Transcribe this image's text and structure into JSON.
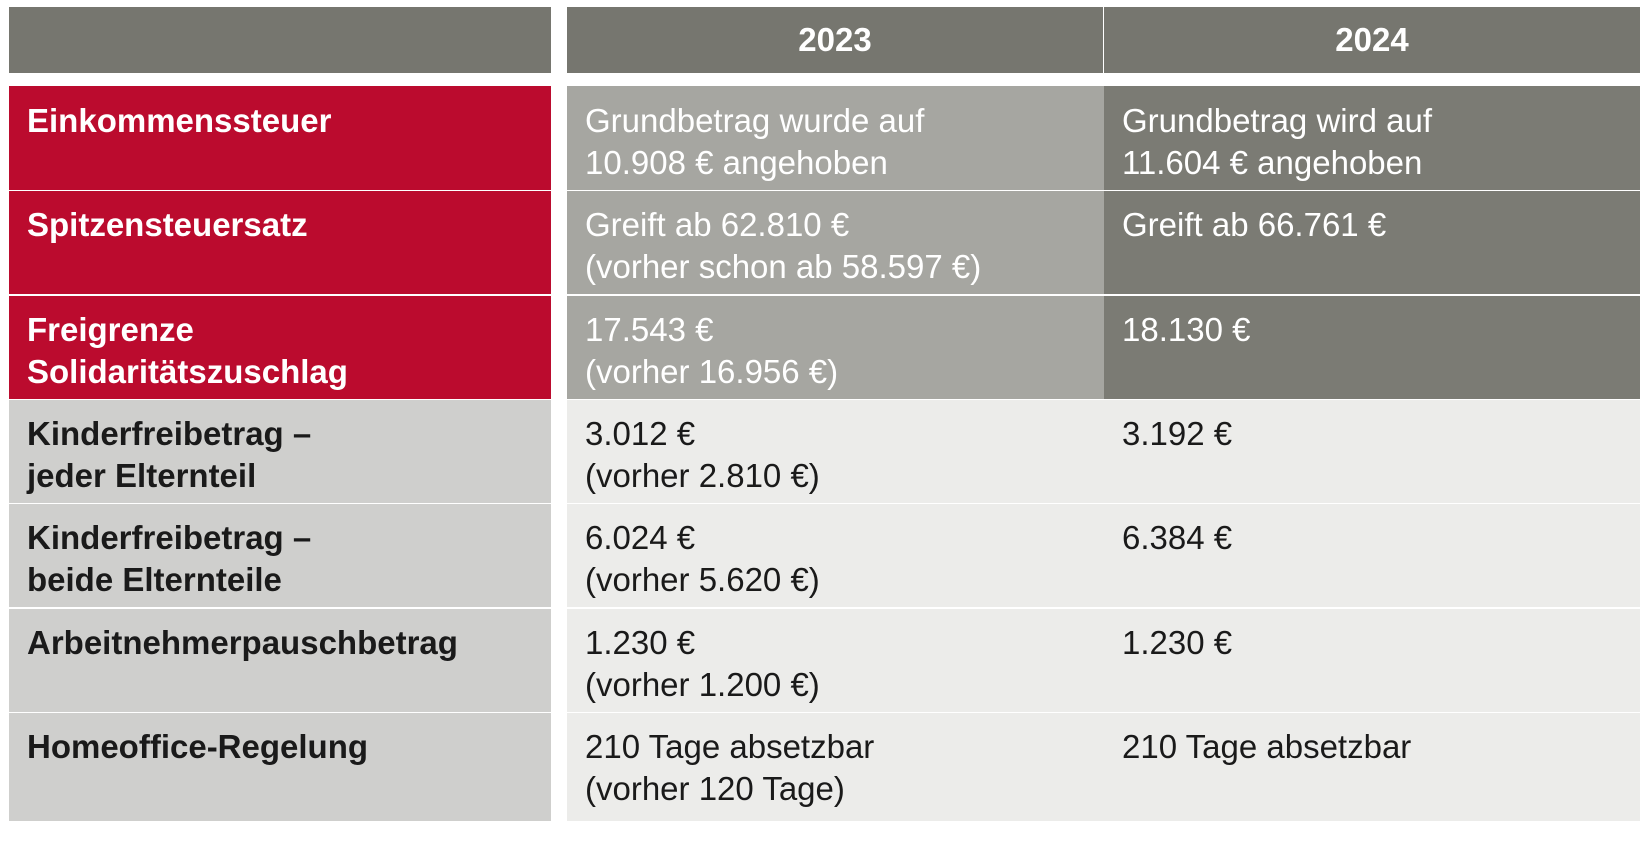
{
  "header": {
    "col_2023": "2023",
    "col_2024": "2024"
  },
  "rows": [
    {
      "label": [
        "Einkommenssteuer"
      ],
      "y2023": [
        "Grundbetrag wurde auf",
        "10.908 € angehoben"
      ],
      "y2024": [
        "Grundbetrag wird auf",
        "11.604 € angehoben"
      ]
    },
    {
      "label": [
        "Spitzensteuersatz"
      ],
      "y2023": [
        "Greift ab 62.810 €",
        "(vorher schon ab 58.597 €)"
      ],
      "y2024": [
        "Greift ab 66.761 €"
      ]
    },
    {
      "label": [
        "Freigrenze",
        "Solidaritätszuschlag"
      ],
      "y2023": [
        "17.543 €",
        "(vorher 16.956 €)"
      ],
      "y2024": [
        "18.130 €"
      ]
    },
    {
      "label": [
        "Kinderfreibetrag –",
        "jeder Elternteil"
      ],
      "y2023": [
        "3.012 €",
        "(vorher 2.810 €)"
      ],
      "y2024": [
        "3.192 €"
      ]
    },
    {
      "label": [
        "Kinderfreibetrag –",
        "beide Elternteile"
      ],
      "y2023": [
        "6.024 €",
        "(vorher 5.620 €)"
      ],
      "y2024": [
        "6.384 €"
      ]
    },
    {
      "label": [
        "Arbeitnehmerpauschbetrag"
      ],
      "y2023": [
        "1.230 €",
        "(vorher 1.200 €)"
      ],
      "y2024": [
        "1.230 €"
      ]
    },
    {
      "label": [
        "Homeoffice-Regelung"
      ],
      "y2023": [
        "210 Tage absetzbar",
        "(vorher 120 Tage)"
      ],
      "y2024": [
        "210 Tage absetzbar"
      ]
    }
  ],
  "colors": {
    "header": "#76766f",
    "highlight_label": "#bb0b2e",
    "highlight_2023": "#a6a6a1",
    "highlight_2024": "#7b7b74",
    "normal_label": "#cfcfcd",
    "normal_values": "#ececea"
  }
}
